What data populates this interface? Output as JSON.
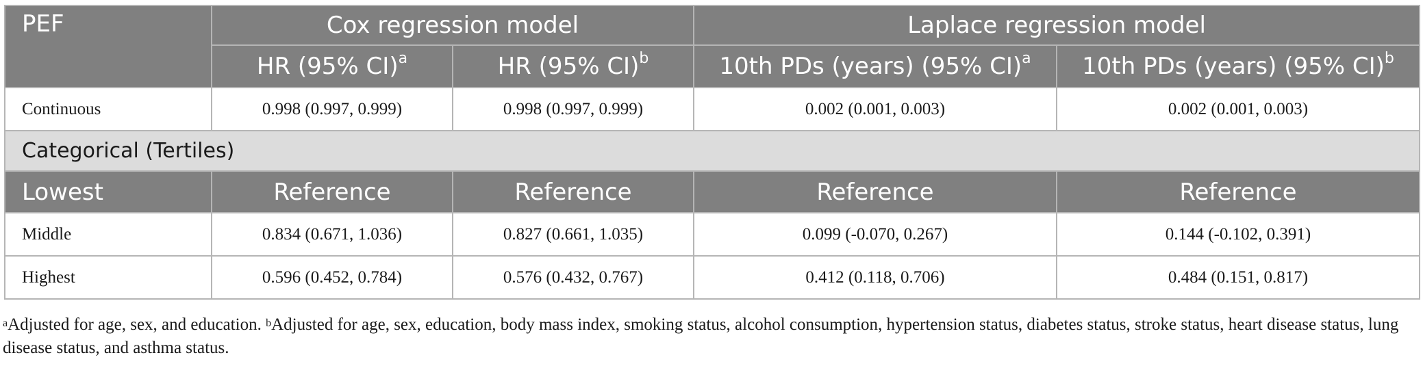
{
  "table": {
    "header": {
      "pef": "PEF",
      "cox": "Cox regression model",
      "laplace": "Laplace regression model",
      "cox_hr_a": "HR (95% CI)",
      "cox_hr_a_sup": "a",
      "cox_hr_b": "HR (95% CI)",
      "cox_hr_b_sup": "b",
      "lap_pd_a": "10th PDs (years) (95% CI)",
      "lap_pd_a_sup": "a",
      "lap_pd_b": "10th PDs (years) (95% CI)",
      "lap_pd_b_sup": "b"
    },
    "continuous": {
      "label": "Continuous",
      "values": [
        "0.998 (0.997, 0.999)",
        "0.998 (0.997, 0.999)",
        "0.002 (0.001, 0.003)",
        "0.002 (0.001, 0.003)"
      ]
    },
    "section_label": "Categorical (Tertiles)",
    "lowest": {
      "label": "Lowest",
      "values": [
        "Reference",
        "Reference",
        "Reference",
        "Reference"
      ]
    },
    "middle": {
      "label": "Middle",
      "values": [
        "0.834 (0.671, 1.036)",
        "0.827 (0.661, 1.035)",
        "0.099 (-0.070, 0.267)",
        "0.144 (-0.102, 0.391)"
      ]
    },
    "highest": {
      "label": "Highest",
      "values": [
        "0.596 (0.452, 0.784)",
        "0.576 (0.432, 0.767)",
        "0.412 (0.118, 0.706)",
        "0.484 (0.151, 0.817)"
      ]
    }
  },
  "footnote": {
    "a_mark": "a",
    "a_text": "Adjusted for age, sex, and education.",
    "b_mark": "b",
    "b_text": "Adjusted for age, sex, education, body mass index, smoking status, alcohol consumption, hypertension status, diabetes status, stroke status, heart disease status, lung disease status, and asthma status."
  },
  "colors": {
    "header_bg": "#808080",
    "section_bg": "#dcdcdc",
    "border": "#b5b5b5"
  }
}
